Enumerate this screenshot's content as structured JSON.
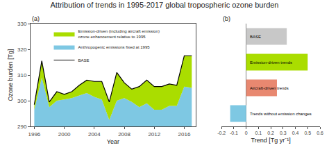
{
  "title": "Attribution of trends in 1995-2017 global tropospheric ozone burden",
  "chart_data": [
    {
      "type": "area",
      "title": "(a)",
      "x": [
        1996,
        1997,
        1998,
        1999,
        2000,
        2001,
        2002,
        2003,
        2004,
        2005,
        2006,
        2007,
        2008,
        2009,
        2010,
        2011,
        2012,
        2013,
        2014,
        2015,
        2016,
        2017
      ],
      "xlabel": "Year",
      "ylabel": "Ozone burden [Tg]",
      "xlim": [
        1995.5,
        2017.5
      ],
      "xticks": [
        1996,
        2000,
        2004,
        2008,
        2012,
        2016
      ],
      "ylim": [
        290,
        330
      ],
      "yticks": [
        290,
        300,
        310,
        320,
        330
      ],
      "grid": false,
      "legend": "upper left",
      "series": [
        {
          "name": "BASE",
          "type": "line",
          "color": "#000000",
          "values": [
            298.5,
            315.5,
            299.5,
            303.5,
            302.5,
            303.5,
            306.0,
            308.0,
            307.5,
            307.5,
            299.5,
            311.0,
            307.0,
            304.5,
            305.5,
            308.0,
            305.5,
            305.5,
            306.5,
            306.0,
            317.5,
            317.5
          ]
        },
        {
          "name": "Anthropogenic emissions fixed at 1995",
          "type": "area",
          "color": "#7ec8e3",
          "values": [
            296.5,
            309.0,
            297.5,
            300.0,
            300.5,
            301.0,
            302.0,
            303.0,
            301.5,
            300.5,
            292.5,
            300.0,
            301.0,
            299.5,
            297.5,
            299.0,
            296.5,
            296.5,
            298.0,
            298.0,
            305.5,
            305.0
          ]
        },
        {
          "name": "Emission-driven (including aircraft emission)\nozone enhancement relative to 1995",
          "type": "area",
          "color": "#aadd00",
          "values": [
            298.5,
            315.5,
            299.5,
            303.5,
            302.5,
            303.5,
            306.0,
            308.0,
            307.5,
            307.5,
            299.5,
            311.0,
            307.0,
            304.5,
            305.5,
            308.0,
            305.5,
            305.5,
            306.5,
            306.0,
            317.5,
            317.5
          ]
        }
      ]
    },
    {
      "type": "bar",
      "orientation": "horizontal",
      "title": "(b)",
      "categories": [
        "BASE",
        "Emission-driven trends",
        "Aircraft-driven trends",
        "Trends without emission changes"
      ],
      "values": [
        0.33,
        0.5,
        0.25,
        0.13
      ],
      "base": [
        0.0,
        0.0,
        0.0,
        -0.13
      ],
      "colors": [
        "#c8c8c8",
        "#aadd00",
        "#e88870",
        "#7ec8e3"
      ],
      "xlabel": "Trend [Tg yr⁻¹]",
      "xlim": [
        -0.2,
        0.6
      ],
      "xticks": [
        -0.2,
        -0.1,
        0,
        0.1,
        0.2,
        0.3,
        0.4,
        0.5,
        0.6
      ],
      "tick_labels": "x",
      "grid": false
    }
  ]
}
